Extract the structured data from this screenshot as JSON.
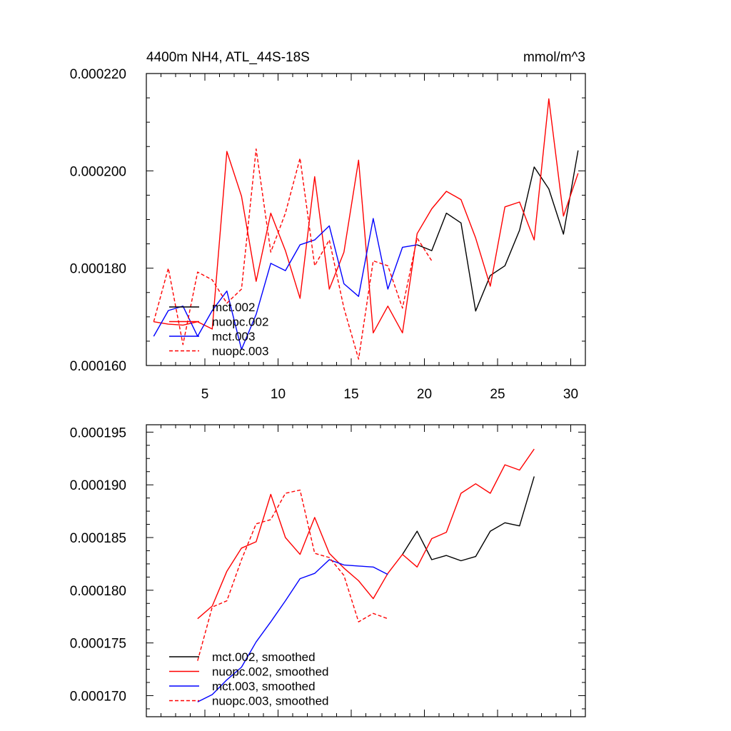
{
  "chart_data": [
    {
      "type": "line",
      "title": "4400m NH4, ATL_44S-18S",
      "units": "mmol/m^3",
      "xlabel": "",
      "ylabel": "",
      "xlim": [
        1,
        31
      ],
      "ylim": [
        0.00016,
        0.00022
      ],
      "x_ticks": [
        5,
        10,
        15,
        20,
        25,
        30
      ],
      "x_tick_labels": [
        "5",
        "10",
        "15",
        "20",
        "25",
        "30"
      ],
      "y_ticks": [
        0.00016,
        0.00018,
        0.0002,
        0.00022
      ],
      "y_tick_labels": [
        "0.000160",
        "0.000180",
        "0.000200",
        "0.000220"
      ],
      "legend_location": "lower-left",
      "series": [
        {
          "name": "mct.002",
          "color": "#000000",
          "dash": "solid",
          "x": [
            19.5,
            20.5,
            21.5,
            22.5,
            23.5,
            24.5,
            25.5,
            26.5,
            27.5,
            28.5,
            29.5,
            30.5
          ],
          "values": [
            0.0001848,
            0.0001836,
            0.0001913,
            0.0001893,
            0.0001712,
            0.0001785,
            0.0001805,
            0.0001878,
            0.0002008,
            0.0001963,
            0.000187,
            0.0002042
          ]
        },
        {
          "name": "nuopc.002",
          "color": "#ff0000",
          "dash": "solid",
          "x": [
            1.5,
            2.5,
            3.5,
            4.5,
            5.5,
            6.5,
            7.5,
            8.5,
            9.5,
            10.5,
            11.5,
            12.5,
            13.5,
            14.5,
            15.5,
            16.5,
            17.5,
            18.5,
            19.5,
            20.5,
            21.5,
            22.5,
            23.5,
            24.5,
            25.5,
            26.5,
            27.5,
            28.5,
            29.5,
            30.5
          ],
          "values": [
            0.000169,
            0.0001685,
            0.0001683,
            0.000169,
            0.0001675,
            0.000204,
            0.0001948,
            0.0001773,
            0.0001913,
            0.0001836,
            0.0001738,
            0.0001988,
            0.0001757,
            0.0001833,
            0.0002022,
            0.0001667,
            0.0001722,
            0.0001667,
            0.0001871,
            0.0001922,
            0.0001958,
            0.0001941,
            0.0001862,
            0.0001763,
            0.0001926,
            0.0001936,
            0.0001858,
            0.0002148,
            0.0001907,
            0.0001995
          ]
        },
        {
          "name": "mct.003",
          "color": "#0000ff",
          "dash": "solid",
          "x": [
            1.5,
            2.5,
            3.5,
            4.5,
            5.5,
            6.5,
            7.5,
            8.5,
            9.5,
            10.5,
            11.5,
            12.5,
            13.5,
            14.5,
            15.5,
            16.5,
            17.5,
            18.5,
            19.5
          ],
          "values": [
            0.000166,
            0.0001713,
            0.0001722,
            0.000166,
            0.0001713,
            0.0001753,
            0.0001633,
            0.0001705,
            0.000181,
            0.0001795,
            0.0001848,
            0.0001858,
            0.0001887,
            0.0001768,
            0.0001742,
            0.0001902,
            0.0001757,
            0.0001843,
            0.0001848
          ]
        },
        {
          "name": "nuopc.003",
          "color": "#ff0000",
          "dash": "dashed",
          "x": [
            1.5,
            2.5,
            3.5,
            4.5,
            5.5,
            6.5,
            7.5,
            8.5,
            9.5,
            10.5,
            11.5,
            12.5,
            13.5,
            14.5,
            15.5,
            16.5,
            17.5,
            18.5,
            19.5,
            20.5
          ],
          "values": [
            0.000169,
            0.00018,
            0.0001643,
            0.0001792,
            0.0001776,
            0.0001728,
            0.0001757,
            0.0002045,
            0.0001833,
            0.0001913,
            0.0002026,
            0.0001805,
            0.0001858,
            0.0001718,
            0.0001613,
            0.0001815,
            0.0001805,
            0.0001718,
            0.0001862,
            0.0001815
          ]
        }
      ]
    },
    {
      "type": "line",
      "title": "",
      "xlabel": "",
      "ylabel": "",
      "xlim": [
        1,
        31
      ],
      "ylim": [
        0.000168,
        0.0001957
      ],
      "x_ticks": [
        5,
        10,
        15,
        20,
        25,
        30
      ],
      "x_tick_labels": [],
      "y_ticks": [
        0.00017,
        0.000175,
        0.00018,
        0.000185,
        0.00019,
        0.000195
      ],
      "y_tick_labels": [
        "0.000170",
        "0.000175",
        "0.000180",
        "0.000185",
        "0.000190",
        "0.000195"
      ],
      "legend_location": "lower-left",
      "series": [
        {
          "name": "mct.002, smoothed",
          "color": "#000000",
          "dash": "solid",
          "x": [
            18.5,
            19.5,
            20.5,
            21.5,
            22.5,
            23.5,
            24.5,
            25.5,
            26.5,
            27.5
          ],
          "values": [
            0.0001834,
            0.0001856,
            0.0001829,
            0.0001833,
            0.0001828,
            0.0001832,
            0.0001856,
            0.0001864,
            0.0001861,
            0.0001908
          ]
        },
        {
          "name": "nuopc.002, smoothed",
          "color": "#ff0000",
          "dash": "solid",
          "x": [
            4.5,
            5.5,
            6.5,
            7.5,
            8.5,
            9.5,
            10.5,
            11.5,
            12.5,
            13.5,
            14.5,
            15.5,
            16.5,
            17.5,
            18.5,
            19.5,
            20.5,
            21.5,
            22.5,
            23.5,
            24.5,
            25.5,
            26.5,
            27.5
          ],
          "values": [
            0.0001773,
            0.0001785,
            0.0001818,
            0.000184,
            0.0001846,
            0.0001891,
            0.000185,
            0.0001834,
            0.0001869,
            0.0001835,
            0.0001821,
            0.0001809,
            0.0001792,
            0.0001816,
            0.0001834,
            0.0001822,
            0.0001849,
            0.0001855,
            0.0001892,
            0.0001901,
            0.0001892,
            0.0001919,
            0.0001914,
            0.0001934
          ]
        },
        {
          "name": "mct.003, smoothed",
          "color": "#0000ff",
          "dash": "solid",
          "x": [
            4.5,
            5.5,
            6.5,
            7.5,
            8.5,
            9.5,
            10.5,
            11.5,
            12.5,
            13.5,
            14.5,
            15.5,
            16.5,
            17.5
          ],
          "values": [
            0.0001694,
            0.0001701,
            0.0001715,
            0.0001727,
            0.0001751,
            0.000177,
            0.000179,
            0.0001811,
            0.0001816,
            0.0001829,
            0.0001824,
            0.0001823,
            0.0001822,
            0.0001815
          ]
        },
        {
          "name": "nuopc.003, smoothed",
          "color": "#ff0000",
          "dash": "dashed",
          "x": [
            4.5,
            5.5,
            6.5,
            7.5,
            8.5,
            9.5,
            10.5,
            11.5,
            12.5,
            13.5,
            14.5,
            15.5,
            16.5,
            17.5
          ],
          "values": [
            0.0001733,
            0.0001784,
            0.000179,
            0.0001829,
            0.0001863,
            0.0001867,
            0.0001892,
            0.0001895,
            0.0001835,
            0.0001831,
            0.0001814,
            0.000177,
            0.0001778,
            0.0001773
          ]
        }
      ]
    }
  ]
}
